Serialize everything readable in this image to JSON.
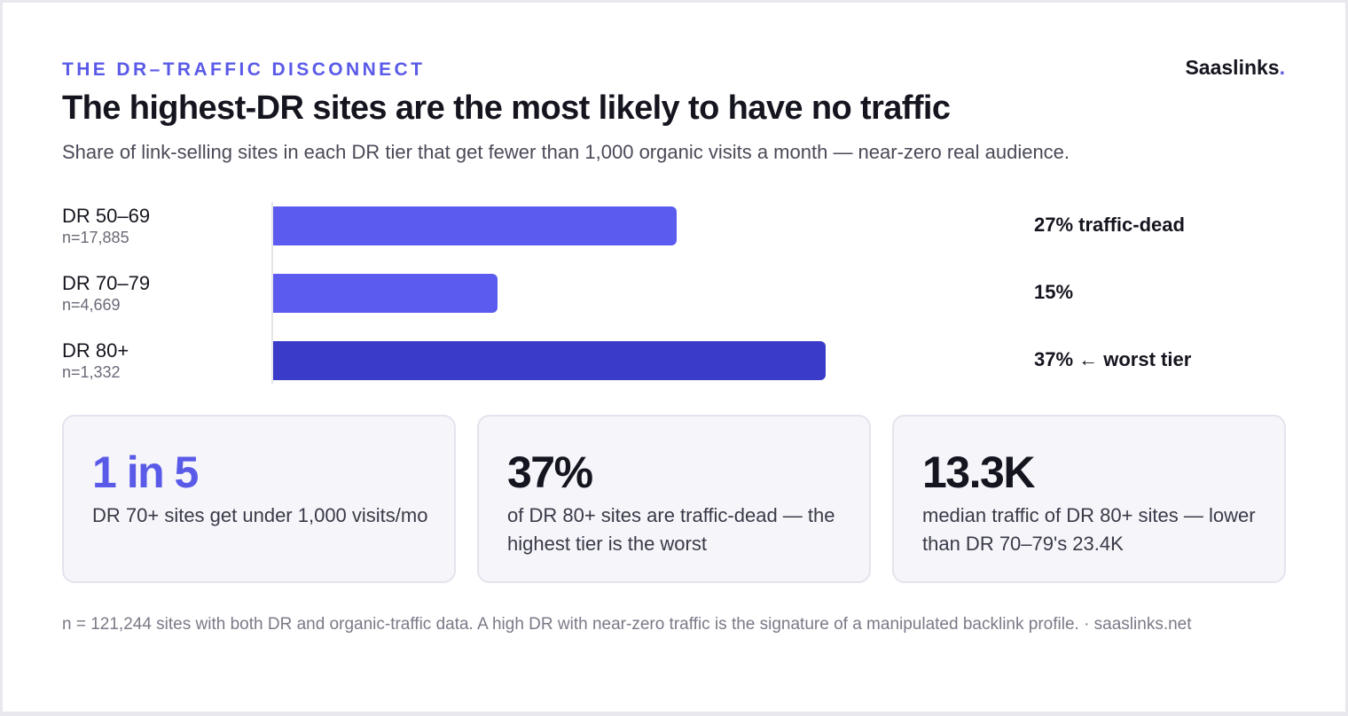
{
  "header": {
    "eyebrow": "THE DR–TRAFFIC DISCONNECT",
    "brand_name": "Saaslinks",
    "brand_dot": ".",
    "title": "The highest-DR sites are the most likely to have no traffic",
    "subtitle": "Share of link-selling sites in each DR tier that get fewer than 1,000 organic visits a month — near-zero real audience."
  },
  "chart_data": {
    "type": "bar",
    "orientation": "horizontal",
    "title": "The highest-DR sites are the most likely to have no traffic",
    "subtitle": "Share of link-selling sites in each DR tier that get fewer than 1,000 organic visits a month — near-zero real audience.",
    "xlabel": "",
    "ylabel": "",
    "unit": "%",
    "xlim": [
      0,
      50
    ],
    "grid": false,
    "legend": "none",
    "categories": [
      "DR 50–69",
      "DR 70–79",
      "DR 80+"
    ],
    "sample_sizes": [
      "n=17,885",
      "n=4,669",
      "n=1,332"
    ],
    "values": [
      27,
      15,
      37
    ],
    "data_labels": [
      "27% traffic-dead",
      "15%",
      "37% ← worst tier"
    ],
    "colors": [
      "#5b5bef",
      "#5b5bef",
      "#3b3bc9"
    ]
  },
  "stats": [
    {
      "value": "1 in 5",
      "description": "DR 70+ sites get under 1,000 visits/mo",
      "accent": true
    },
    {
      "value": "37%",
      "description": "of DR 80+ sites are traffic-dead — the highest tier is the worst",
      "accent": false
    },
    {
      "value": "13.3K",
      "description": "median traffic of DR 80+ sites — lower than DR 70–79's 23.4K",
      "accent": false
    }
  ],
  "footnote": "n = 121,244 sites with both DR and organic-traffic data. A high DR with near-zero traffic is the signature of a manipulated backlink profile. · saaslinks.net"
}
